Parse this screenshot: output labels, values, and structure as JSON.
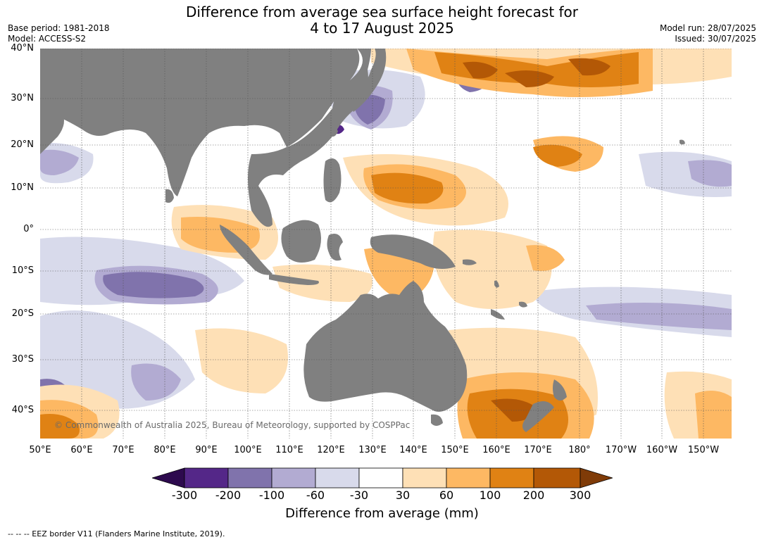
{
  "title": {
    "line1": "Difference from average sea surface height forecast for",
    "line2": "4 to 17 August 2025"
  },
  "meta_left": {
    "base_period": "Base period: 1981-2018",
    "model": "Model: ACCESS-S2"
  },
  "meta_right": {
    "model_run": "Model run: 28/07/2025",
    "issued": "Issued: 30/07/2025"
  },
  "map": {
    "lat_labels": [
      "40°N",
      "30°N",
      "20°N",
      "10°N",
      "0°",
      "10°S",
      "20°S",
      "30°S",
      "40°S"
    ],
    "lon_labels": [
      "50°E",
      "60°E",
      "70°E",
      "80°E",
      "90°E",
      "100°E",
      "110°E",
      "120°E",
      "130°E",
      "140°E",
      "150°E",
      "160°E",
      "170°E",
      "180°",
      "170°W",
      "160°W",
      "150°W"
    ],
    "land_color": "#808080",
    "grid_style": "dotted"
  },
  "copyright": "© Commonwealth of Australia 2025, Bureau of Meteorology, supported by COSPPac",
  "colorbar": {
    "title": "Difference from average (mm)",
    "tick_labels": [
      "-300",
      "-200",
      "-100",
      "-60",
      "-30",
      "30",
      "60",
      "100",
      "200",
      "300"
    ],
    "under_color": "#2d0a4e",
    "over_color": "#7f3b08",
    "colors": [
      "#542788",
      "#8073ac",
      "#b2abd2",
      "#d8daeb",
      "#ffffff",
      "#fee0b6",
      "#fdb863",
      "#e08214",
      "#b35806"
    ]
  },
  "footnote": "--  --  -- EEZ border V11 (Flanders Marine Institute, 2019)."
}
